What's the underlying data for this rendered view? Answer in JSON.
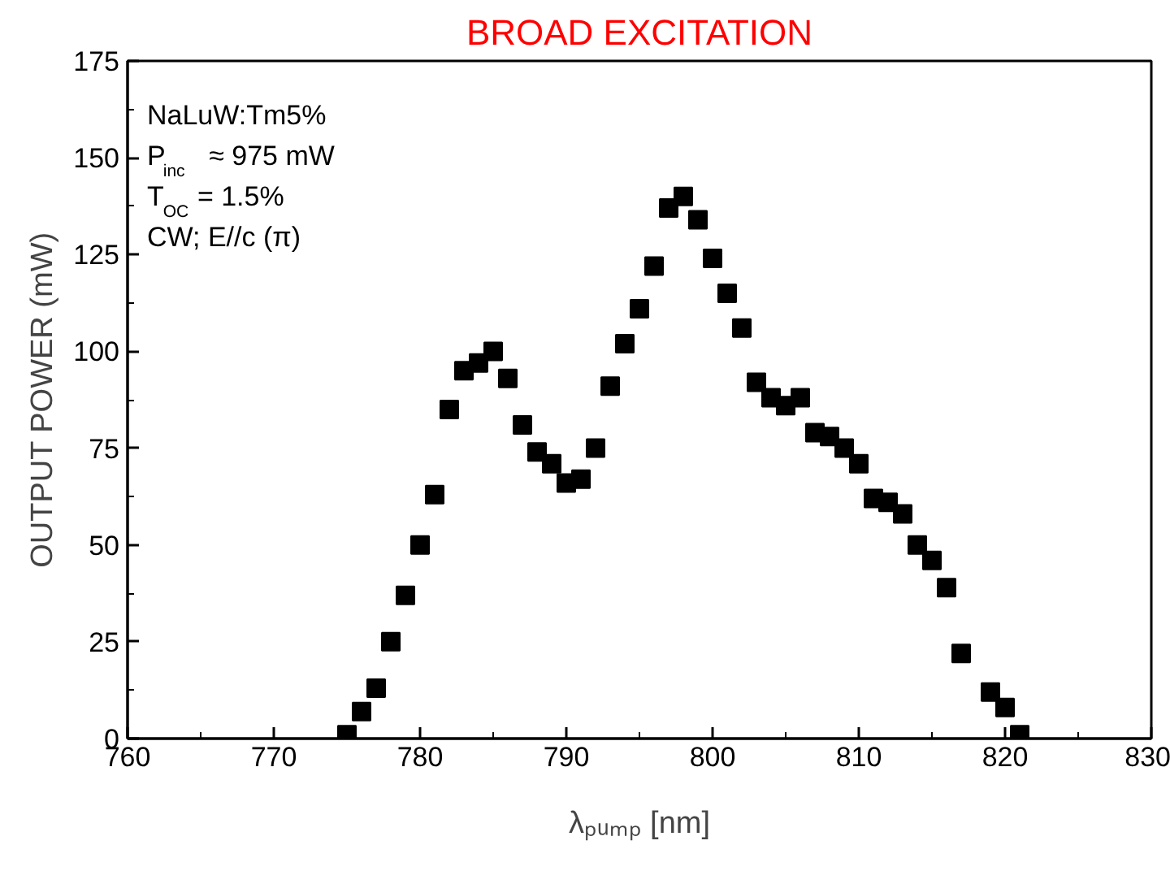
{
  "chart_data": {
    "type": "scatter",
    "title": "BROAD EXCITATION",
    "xlabel": "λₚᵤₘₚ [nm]",
    "ylabel": "OUTPUT POWER (mW)",
    "annotations": [
      "NaLuW:Tm5%",
      "P$_{inc}$ ≈ 975 mW",
      "T$_{OC}$ = 1.5%",
      "CW; E//c (π)"
    ],
    "x": [
      775,
      776,
      777,
      778,
      779,
      780,
      781,
      782,
      783,
      784,
      785,
      786,
      787,
      788,
      789,
      790,
      791,
      792,
      793,
      794,
      795,
      796,
      797,
      798,
      799,
      800,
      801,
      802,
      803,
      804,
      805,
      806,
      807,
      808,
      809,
      810,
      811,
      812,
      813,
      814,
      815,
      816,
      817,
      819,
      820,
      821
    ],
    "series": [
      {
        "color": "#000000",
        "values": [
          1,
          7,
          13,
          25,
          37,
          50,
          63,
          85,
          95,
          97,
          100,
          93,
          81,
          74,
          71,
          66,
          67,
          75,
          91,
          102,
          111,
          122,
          137,
          140,
          134,
          124,
          115,
          106,
          92,
          88,
          86,
          88,
          79,
          78,
          75,
          71,
          62,
          61,
          58,
          50,
          46,
          39,
          22,
          12,
          8,
          1
        ]
      }
    ],
    "marker": "square",
    "grid": false,
    "xlim": [
      760,
      830
    ],
    "ylim": [
      0,
      175
    ],
    "xticks": [
      760,
      770,
      780,
      790,
      800,
      810,
      820,
      830
    ],
    "yticks": [
      0,
      25,
      50,
      75,
      100,
      125,
      150,
      175
    ]
  }
}
